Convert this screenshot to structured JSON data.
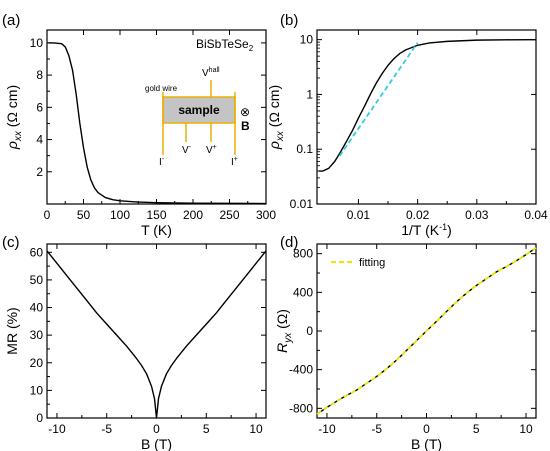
{
  "figure": {
    "sample_label": "BiSbTeSe",
    "sample_subscript": "2"
  },
  "chart_data": [
    {
      "panel": "(a)",
      "type": "line",
      "xlabel": "T (K)",
      "ylabel": "ρxx (Ω cm)",
      "ylabel_main": "ρ",
      "ylabel_sub": "xx",
      "ylabel_unit": " (Ω cm)",
      "xlim": [
        0,
        300
      ],
      "ylim": [
        0,
        10.8
      ],
      "xticks": [
        0,
        50,
        100,
        150,
        200,
        250,
        300
      ],
      "yticks": [
        2,
        4,
        6,
        8,
        10
      ],
      "grid": false,
      "series": [
        {
          "color": "#000000",
          "x": [
            2,
            10,
            20,
            25,
            30,
            35,
            40,
            45,
            50,
            55,
            60,
            65,
            70,
            80,
            90,
            100,
            125,
            150,
            200,
            250,
            300
          ],
          "y": [
            10.0,
            10.0,
            9.95,
            9.75,
            9.2,
            8.3,
            6.8,
            5.0,
            3.5,
            2.3,
            1.5,
            1.0,
            0.7,
            0.4,
            0.27,
            0.2,
            0.12,
            0.08,
            0.05,
            0.04,
            0.03
          ]
        }
      ],
      "inset": {
        "center_label": "sample",
        "wire_label": "gold wire",
        "hall_label_main": "V",
        "hall_label_sup": "hall",
        "field_symbol": "⊗",
        "field_label": "B",
        "bottom_labels": [
          {
            "main": "I",
            "sup": "-"
          },
          {
            "main": "V",
            "sup": "-"
          },
          {
            "main": "V",
            "sup": "+"
          },
          {
            "main": "I",
            "sup": "+"
          }
        ]
      }
    },
    {
      "panel": "(b)",
      "type": "line",
      "xlabel": "1/T (K⁻¹)",
      "xlabel_main": "1/T (K",
      "xlabel_sup": "-1",
      "xlabel_tail": ")",
      "ylabel": "ρxx (Ω cm)",
      "ylabel_main": "ρ",
      "ylabel_sub": "xx",
      "ylabel_unit": " (Ω cm)",
      "xlim": [
        0.003,
        0.04
      ],
      "ylim": [
        0.01,
        15
      ],
      "yscale": "log",
      "xticks": [
        0.01,
        0.02,
        0.03,
        0.04
      ],
      "yticks": [
        0.01,
        0.1,
        1,
        10
      ],
      "ytick_labels": [
        "0.01",
        "0.1",
        "1",
        "10"
      ],
      "grid": false,
      "series": [
        {
          "color": "#000000",
          "x": [
            0.0033,
            0.004,
            0.005,
            0.006,
            0.007,
            0.008,
            0.009,
            0.01,
            0.011,
            0.012,
            0.013,
            0.014,
            0.015,
            0.016,
            0.017,
            0.018,
            0.02,
            0.022,
            0.025,
            0.03,
            0.035,
            0.04
          ],
          "y": [
            0.04,
            0.04,
            0.045,
            0.06,
            0.09,
            0.14,
            0.22,
            0.37,
            0.6,
            1.0,
            1.6,
            2.4,
            3.4,
            4.5,
            5.6,
            6.5,
            7.9,
            8.7,
            9.3,
            9.8,
            9.95,
            10.0
          ]
        },
        {
          "color": "#33CCDD",
          "style": "dashed",
          "x": [
            0.0068,
            0.02
          ],
          "y": [
            0.075,
            8.8
          ]
        }
      ]
    },
    {
      "panel": "(c)",
      "type": "line",
      "xlabel": "B (T)",
      "ylabel": "MR (%)",
      "xlim": [
        -11,
        11
      ],
      "ylim": [
        0,
        63
      ],
      "xticks": [
        -10,
        -5,
        0,
        5,
        10
      ],
      "yticks": [
        0,
        10,
        20,
        30,
        40,
        50,
        60
      ],
      "grid": false,
      "series": [
        {
          "color": "#000000",
          "x": [
            -11,
            -10,
            -9,
            -8,
            -7,
            -6,
            -5,
            -4,
            -3,
            -2,
            -1.5,
            -1,
            -0.5,
            -0.2,
            0,
            0.2,
            0.5,
            1,
            1.5,
            2,
            3,
            4,
            5,
            6,
            7,
            8,
            9,
            10,
            11
          ],
          "y": [
            60.5,
            56,
            51.5,
            47,
            42.5,
            38,
            34,
            30,
            26,
            21.5,
            19,
            16,
            11.5,
            7,
            0,
            7,
            11.5,
            16,
            19,
            21.5,
            26,
            30,
            34,
            38,
            42.5,
            47,
            51.5,
            56,
            60.5
          ]
        }
      ]
    },
    {
      "panel": "(d)",
      "type": "line",
      "xlabel": "B (T)",
      "ylabel": "Ryx (Ω)",
      "ylabel_main": "R",
      "ylabel_sub": "yx",
      "ylabel_unit": " (Ω)",
      "xlim": [
        -11,
        11
      ],
      "ylim": [
        -900,
        900
      ],
      "xticks": [
        -10,
        -5,
        0,
        5,
        10
      ],
      "yticks": [
        -800,
        -400,
        0,
        400,
        800
      ],
      "grid": false,
      "legend": {
        "label": "fitting",
        "color": "#E8E800",
        "position": "top-left"
      },
      "series": [
        {
          "color": "#000000",
          "x": [
            -11,
            -10,
            -9,
            -8,
            -7,
            -6,
            -5,
            -4,
            -3,
            -2,
            -1,
            0,
            1,
            2,
            3,
            4,
            5,
            6,
            7,
            8,
            9,
            10,
            11
          ],
          "y": [
            -860,
            -790,
            -725,
            -665,
            -610,
            -540,
            -470,
            -390,
            -300,
            -200,
            -100,
            0,
            100,
            200,
            300,
            390,
            470,
            540,
            610,
            665,
            725,
            790,
            860
          ]
        },
        {
          "name": "fitting",
          "color": "#E8E800",
          "style": "dashed",
          "x": [
            -11,
            -10,
            -9,
            -8,
            -7,
            -6,
            -5,
            -4,
            -3,
            -2,
            -1,
            0,
            1,
            2,
            3,
            4,
            5,
            6,
            7,
            8,
            9,
            10,
            11
          ],
          "y": [
            -860,
            -790,
            -725,
            -665,
            -610,
            -540,
            -470,
            -390,
            -300,
            -200,
            -100,
            0,
            100,
            200,
            300,
            390,
            470,
            540,
            610,
            665,
            725,
            790,
            860
          ]
        }
      ]
    }
  ]
}
